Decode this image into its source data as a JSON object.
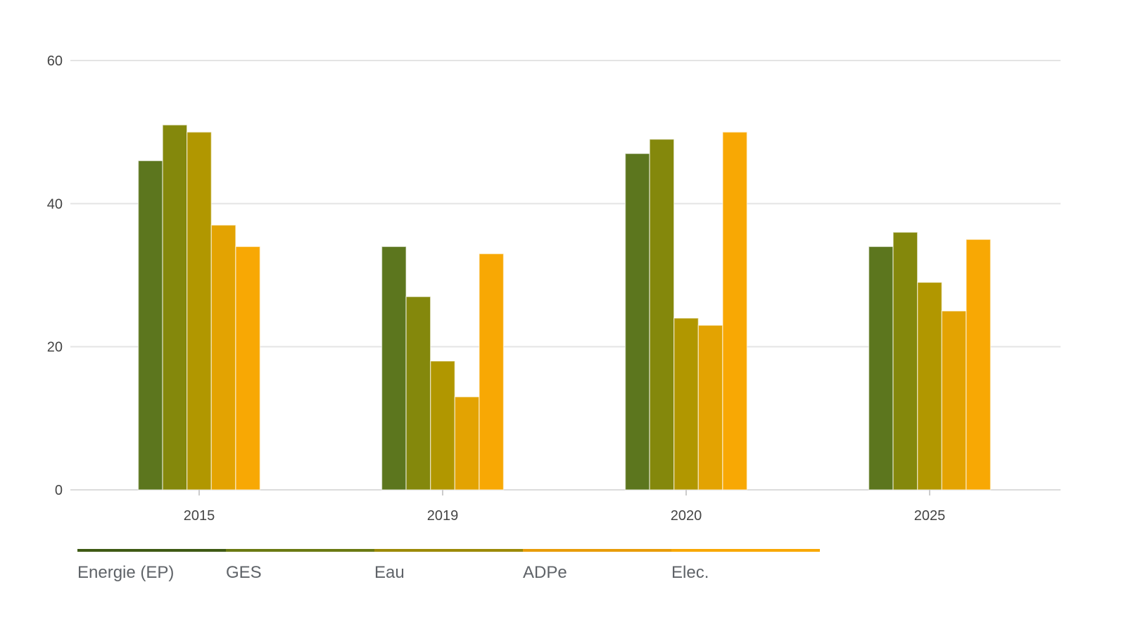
{
  "chart_data": {
    "type": "bar",
    "title": "",
    "xlabel": "",
    "ylabel": "",
    "categories": [
      "2015",
      "2019",
      "2020",
      "2025"
    ],
    "ylim": [
      0,
      60
    ],
    "yticks": [
      0,
      20,
      40,
      60
    ],
    "grid": true,
    "legend_position": "bottom-left",
    "series": [
      {
        "name": "Energie (EP)",
        "color": "#5c761e",
        "values": [
          46,
          34,
          47,
          34
        ]
      },
      {
        "name": "GES",
        "color": "#84880c",
        "values": [
          51,
          27,
          49,
          36
        ]
      },
      {
        "name": "Eau",
        "color": "#b19700",
        "values": [
          50,
          18,
          24,
          29
        ]
      },
      {
        "name": "ADPe",
        "color": "#e3a302",
        "values": [
          37,
          13,
          23,
          25
        ]
      },
      {
        "name": "Elec.",
        "color": "#f8a804",
        "values": [
          34,
          33,
          50,
          35
        ]
      }
    ]
  },
  "legend_colors": [
    "#3f5a14",
    "#6b7a12",
    "#9c8a08",
    "#e89c0a",
    "#f8a804"
  ]
}
